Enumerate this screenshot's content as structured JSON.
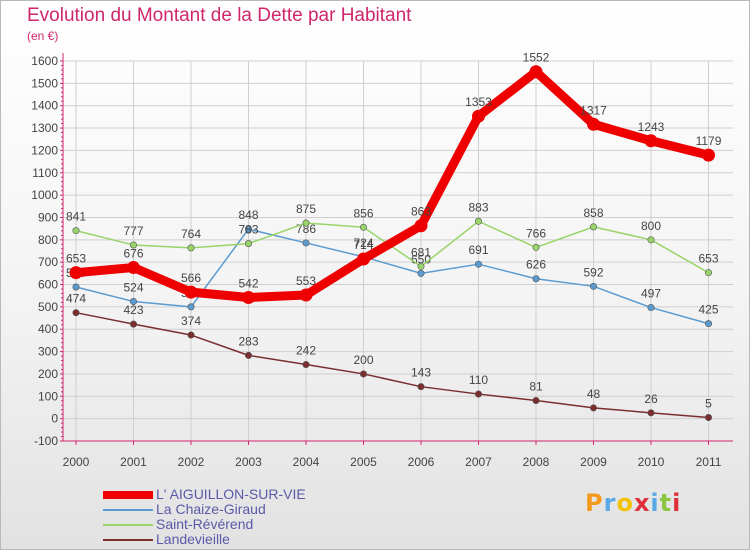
{
  "title": "Evolution du Montant de la Dette par Habitant",
  "subtitle": "(en €)",
  "colors": {
    "title": "#d0266c",
    "axis": "#d0266c",
    "grid": "#cfcfcf",
    "text": "#444444",
    "legend_text": "#5a5aa8"
  },
  "logo": {
    "text": "Proxiti",
    "letter_colors": [
      "#f39a1e",
      "#5aa9e6",
      "#f2c100",
      "#e0303a",
      "#5aa9e6",
      "#8cc63f",
      "#e0303a"
    ]
  },
  "chart_data": {
    "type": "line",
    "title": "Evolution du Montant de la Dette par Habitant",
    "subtitle": "(en €)",
    "x": [
      "2000",
      "2001",
      "2002",
      "2003",
      "2004",
      "2005",
      "2006",
      "2007",
      "2008",
      "2009",
      "2010",
      "2011"
    ],
    "ylim": [
      -100,
      1600
    ],
    "yticks": [
      "-100",
      "0",
      "100",
      "200",
      "300",
      "400",
      "500",
      "600",
      "700",
      "800",
      "900",
      "1000",
      "1100",
      "1200",
      "1300",
      "1400",
      "1500",
      "1600"
    ],
    "grid": true,
    "legend_position": "bottom-left",
    "series": [
      {
        "name": "La Chaize-Giraud",
        "color": "#5b9bd0",
        "values": [
          589,
          524,
          500,
          848,
          786,
          724,
          650,
          691,
          626,
          592,
          497,
          425
        ],
        "labels": [
          "589",
          "524",
          "500",
          "848",
          "786",
          "724",
          "650",
          "691",
          "626",
          "592",
          "497",
          "425"
        ]
      },
      {
        "name": "Saint-Révérend",
        "color": "#99d46a",
        "values": [
          841,
          777,
          764,
          783,
          875,
          856,
          681,
          883,
          766,
          858,
          800,
          653
        ],
        "labels": [
          "841",
          "777",
          "764",
          "783",
          "875",
          "856",
          "681",
          "883",
          "766",
          "858",
          "800",
          "653"
        ]
      },
      {
        "name": "Landevieille",
        "color": "#7a2e2e",
        "values": [
          474,
          423,
          374,
          283,
          242,
          200,
          143,
          110,
          81,
          48,
          26,
          5
        ],
        "labels": [
          "474",
          "423",
          "374",
          "283",
          "242",
          "200",
          "143",
          "110",
          "81",
          "48",
          "26",
          "5"
        ]
      },
      {
        "name": "L' AIGUILLON-SUR-VIE",
        "color": "#ee0000",
        "values": [
          653,
          676,
          566,
          542,
          553,
          714,
          863,
          1353,
          1552,
          1317,
          1243,
          1179
        ],
        "labels": [
          "653",
          "676",
          "566",
          "542",
          "553",
          "714",
          "863",
          "1353",
          "1552",
          "1317",
          "1243",
          "1179"
        ]
      }
    ],
    "legend": [
      {
        "name": "L' AIGUILLON-SUR-VIE",
        "color": "#ee0000"
      },
      {
        "name": "La Chaize-Giraud",
        "color": "#5b9bd0"
      },
      {
        "name": "Saint-Révérend",
        "color": "#99d46a"
      },
      {
        "name": "Landevieille",
        "color": "#7a2e2e"
      }
    ]
  }
}
